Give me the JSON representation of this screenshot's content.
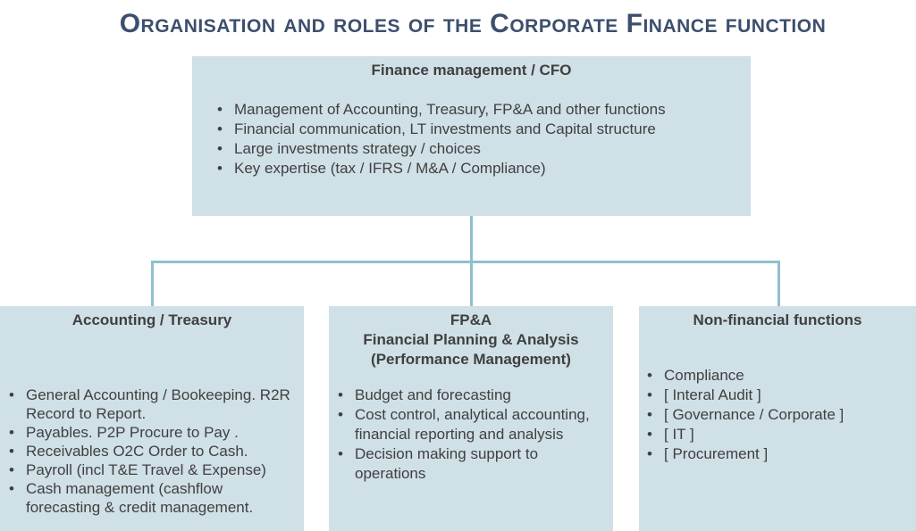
{
  "title": "Organisation and roles of the Corporate Finance function",
  "cfo": {
    "heading": "Finance management / CFO",
    "items": [
      "Management of Accounting, Treasury, FP&A and other functions",
      "Financial communication, LT investments and Capital structure",
      "Large investments strategy / choices",
      "Key expertise (tax / IFRS / M&A / Compliance)"
    ]
  },
  "accounting": {
    "heading": "Accounting / Treasury",
    "items": [
      "General Accounting / Bookeeping. R2R Record to Report.",
      "Payables. P2P Procure to Pay .",
      "Receivables O2C Order to Cash.",
      "Payroll (incl T&E Travel & Expense)",
      "Cash management (cashflow forecasting & credit management."
    ]
  },
  "fpa": {
    "heading_line1": "FP&A",
    "heading_line2": "Financial Planning & Analysis",
    "heading_line3": "(Performance Management)",
    "items": [
      "Budget and forecasting",
      "Cost control, analytical accounting, financial reporting and analysis",
      "Decision making support to operations"
    ]
  },
  "nonfinancial": {
    "heading": "Non-financial functions",
    "items": [
      "Compliance",
      "[ Interal Audit ]",
      "[ Governance / Corporate ]",
      "[ IT ]",
      "[ Procurement ]"
    ]
  },
  "colors": {
    "title": "#3d4f6e",
    "box_fill": "#cfe0e6",
    "connector": "#8fc0cb",
    "text": "#404040"
  }
}
